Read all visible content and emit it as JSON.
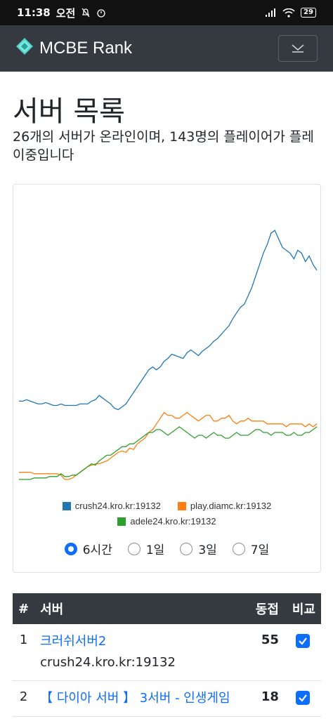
{
  "status_bar": {
    "time": "11:38",
    "ampm": "오전",
    "battery": "29"
  },
  "navbar": {
    "brand": "MCBE Rank"
  },
  "page": {
    "title": "서버 목록",
    "lead": "26개의 서버가 온라인이며, 143명의 플레이어가 플레이중입니다"
  },
  "chart_data": {
    "type": "line",
    "series": [
      {
        "name": "crush24.kro.kr:19132",
        "color": "#1f77b4",
        "values": [
          60,
          60,
          61,
          60,
          59,
          58,
          58,
          59,
          58,
          57,
          57,
          58,
          57,
          57,
          57,
          57,
          58,
          58,
          58,
          60,
          61,
          64,
          62,
          60,
          58,
          55,
          54,
          56,
          58,
          62,
          66,
          70,
          74,
          78,
          82,
          84,
          82,
          84,
          88,
          90,
          93,
          92,
          91,
          90,
          94,
          96,
          94,
          92,
          95,
          97,
          99,
          102,
          104,
          107,
          110,
          113,
          118,
          122,
          126,
          128,
          134,
          140,
          148,
          156,
          164,
          170,
          178,
          180,
          174,
          168,
          166,
          164,
          160,
          166,
          164,
          158,
          162,
          156,
          152
        ]
      },
      {
        "name": "play.diamc.kr:19132",
        "color": "#ff7f0e",
        "values": [
          10,
          10,
          10,
          10,
          9,
          9,
          9,
          9,
          9,
          9,
          9,
          8,
          5,
          5,
          6,
          8,
          10,
          12,
          14,
          15,
          16,
          16,
          17,
          18,
          20,
          22,
          24,
          25,
          24,
          27,
          26,
          30,
          32,
          34,
          38,
          40,
          44,
          48,
          52,
          50,
          50,
          48,
          48,
          50,
          52,
          50,
          48,
          46,
          48,
          50,
          50,
          46,
          46,
          48,
          48,
          50,
          46,
          44,
          46,
          46,
          48,
          46,
          46,
          46,
          46,
          44,
          44,
          44,
          44,
          44,
          42,
          44,
          44,
          44,
          44,
          42,
          44,
          42,
          44
        ]
      },
      {
        "name": "adele24.kro.kr:19132",
        "color": "#2ca02c",
        "values": [
          5,
          5,
          5,
          5,
          6,
          6,
          6,
          6,
          7,
          7,
          7,
          9,
          7,
          7,
          8,
          8,
          10,
          12,
          14,
          16,
          15,
          18,
          20,
          22,
          22,
          24,
          26,
          28,
          28,
          30,
          30,
          32,
          34,
          36,
          38,
          38,
          40,
          40,
          38,
          36,
          38,
          40,
          42,
          40,
          38,
          36,
          34,
          36,
          36,
          34,
          36,
          38,
          36,
          36,
          34,
          34,
          36,
          38,
          36,
          36,
          36,
          38,
          40,
          40,
          38,
          38,
          36,
          38,
          38,
          38,
          36,
          36,
          38,
          36,
          36,
          38,
          38,
          40,
          42
        ]
      }
    ],
    "legend": [
      "crush24.kro.kr:19132",
      "play.diamc.kr:19132",
      "adele24.kro.kr:19132"
    ],
    "ylim": [
      0,
      185
    ]
  },
  "range_options": [
    {
      "label": "6시간",
      "checked": true
    },
    {
      "label": "1일",
      "checked": false
    },
    {
      "label": "3일",
      "checked": false
    },
    {
      "label": "7일",
      "checked": false
    }
  ],
  "table": {
    "headers": {
      "rank": "#",
      "server": "서버",
      "players": "동접",
      "compare": "비교"
    },
    "rows": [
      {
        "rank": "1",
        "name": "크러쉬서버2",
        "address": "crush24.kro.kr:19132",
        "players": "55"
      },
      {
        "rank": "2",
        "name": "【 다이아 서버 】 3서버 - 인생게임",
        "address": "",
        "players": "18"
      }
    ]
  }
}
